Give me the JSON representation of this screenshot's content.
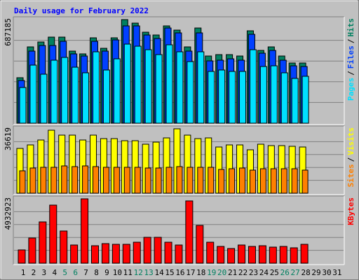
{
  "chart_data": [
    {
      "type": "bar",
      "title": "Daily usage for February 2022",
      "ylim": [
        0,
        687185
      ],
      "legend_separator": "/",
      "series": [
        {
          "name": "Hits",
          "color": "#008060",
          "values": [
            301800,
            506100,
            538600,
            571100,
            571100,
            478200,
            459700,
            566400,
            496800,
            566400,
            687185,
            663900,
            603600,
            585000,
            645400,
            617500,
            506100,
            631400,
            445700,
            455000,
            455000,
            445700,
            612900,
            482900,
            506100,
            445700,
            399300,
            399300,
            null,
            null,
            null
          ]
        },
        {
          "name": "Files",
          "color": "#0040ff",
          "values": [
            283200,
            478200,
            515400,
            515400,
            543200,
            459700,
            445700,
            543200,
            478200,
            552500,
            645400,
            645400,
            585000,
            561800,
            631400,
            598900,
            478200,
            598900,
            413200,
            417900,
            427200,
            417900,
            589700,
            464300,
            482900,
            417900,
            380700,
            376100,
            null,
            null,
            null
          ]
        },
        {
          "name": "Pages",
          "color": "#00e0ff",
          "values": [
            236800,
            385400,
            325000,
            417900,
            436400,
            371400,
            334300,
            473600,
            352900,
            427200,
            524700,
            510700,
            487500,
            455000,
            520000,
            473600,
            408600,
            473600,
            343600,
            352900,
            343600,
            343600,
            487500,
            376100,
            380700,
            334300,
            297200,
            311100,
            null,
            null,
            null
          ]
        }
      ]
    },
    {
      "type": "bar",
      "ylim": [
        0,
        36619
      ],
      "legend_separator": "/",
      "series": [
        {
          "name": "Visits",
          "color": "#ffff00",
          "values": [
            25470,
            27460,
            30250,
            35820,
            33030,
            33030,
            30250,
            33030,
            31040,
            31040,
            29850,
            29850,
            27860,
            29050,
            31440,
            36619,
            33030,
            31040,
            31440,
            26270,
            27460,
            27460,
            24680,
            27860,
            27060,
            27060,
            26670,
            26270,
            null,
            null,
            null
          ]
        },
        {
          "name": "Sites",
          "color": "#ff8000",
          "values": [
            12740,
            14330,
            14730,
            14730,
            15520,
            15130,
            15520,
            15130,
            14730,
            14730,
            14730,
            14730,
            14330,
            14330,
            14730,
            15130,
            14730,
            14730,
            14730,
            13530,
            13930,
            14330,
            13130,
            13930,
            13930,
            13930,
            13930,
            13130,
            null,
            null,
            null
          ]
        }
      ]
    },
    {
      "type": "bar",
      "ylim": [
        0,
        4932923
      ],
      "series": [
        {
          "name": "KBytes",
          "color": "#ff0000",
          "values": [
            1018800,
            1930300,
            3163500,
            4450400,
            2466500,
            1394100,
            4932923,
            1340500,
            1501300,
            1447700,
            1447700,
            1608600,
            1983900,
            1983900,
            1608600,
            1394100,
            4772100,
            2895400,
            1608600,
            1286900,
            1126000,
            1394100,
            1286900,
            1340500,
            1233200,
            1286900,
            1179600,
            1447700,
            null,
            null,
            null
          ]
        }
      ],
      "categories": [
        "1",
        "2",
        "3",
        "4",
        "5",
        "6",
        "7",
        "8",
        "9",
        "10",
        "11",
        "12",
        "13",
        "14",
        "15",
        "16",
        "17",
        "18",
        "19",
        "20",
        "21",
        "22",
        "23",
        "24",
        "25",
        "26",
        "27",
        "28",
        "29",
        "30",
        "31"
      ],
      "category_colors": [
        "#000000",
        "#000000",
        "#000000",
        "#000000",
        "#008060",
        "#008060",
        "#000000",
        "#000000",
        "#000000",
        "#000000",
        "#000000",
        "#008060",
        "#008060",
        "#000000",
        "#000000",
        "#000000",
        "#000000",
        "#000000",
        "#008060",
        "#008060",
        "#000000",
        "#000000",
        "#000000",
        "#000000",
        "#000000",
        "#008060",
        "#008060",
        "#000000",
        "#000000",
        "#000000",
        "#000000"
      ]
    }
  ]
}
